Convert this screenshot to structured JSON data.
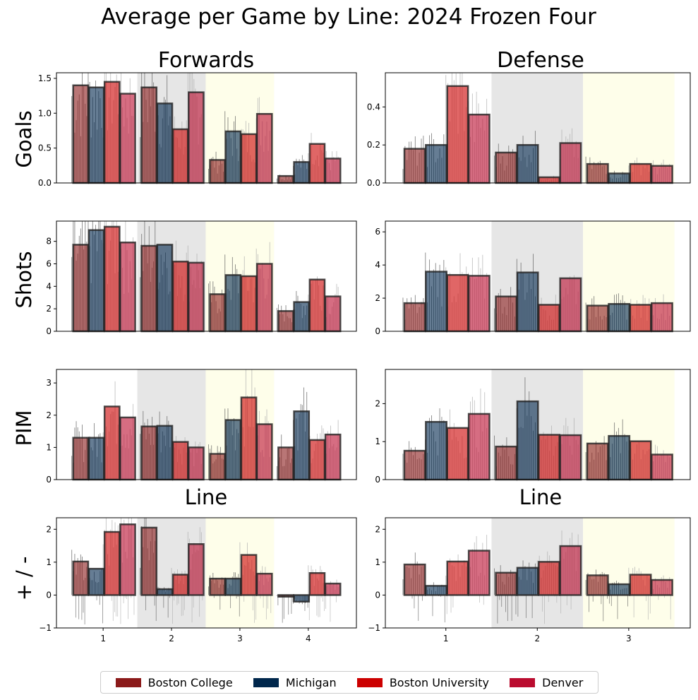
{
  "title": "Average per Game by Line: 2024 Frozen Four",
  "chart_data": {
    "type": "bar",
    "title": "Average per Game by Line: 2024 Frozen Four",
    "columns": [
      "Forwards",
      "Defense"
    ],
    "rows": [
      "Goals",
      "Shots",
      "PIM",
      "+ / -"
    ],
    "x_label_row3": "Line",
    "teams": [
      {
        "name": "Boston College",
        "color": "#8B1A1A"
      },
      {
        "name": "Michigan",
        "color": "#00274C"
      },
      {
        "name": "Boston University",
        "color": "#CC0000"
      },
      {
        "name": "Denver",
        "color": "#BA0C2F"
      }
    ],
    "forwards": {
      "lines": [
        "1",
        "2",
        "3",
        "4"
      ],
      "Goals": {
        "ylim": [
          0,
          1.58
        ],
        "ticks": [
          "0.0",
          "0.5",
          "1.0",
          "1.5"
        ],
        "values": [
          [
            1.4,
            1.37,
            1.45,
            1.28
          ],
          [
            1.37,
            1.14,
            0.77,
            1.3
          ],
          [
            0.33,
            0.74,
            0.7,
            0.99
          ],
          [
            0.1,
            0.3,
            0.56,
            0.35
          ]
        ]
      },
      "Shots": {
        "ylim": [
          0,
          9.8
        ],
        "ticks": [
          "0",
          "2",
          "4",
          "6",
          "8"
        ],
        "values": [
          [
            7.7,
            9.0,
            9.3,
            7.9
          ],
          [
            7.6,
            7.7,
            6.2,
            6.1
          ],
          [
            3.3,
            5.0,
            4.9,
            6.0
          ],
          [
            1.8,
            2.6,
            4.6,
            3.1
          ]
        ]
      },
      "PIM": {
        "ylim": [
          0,
          3.42
        ],
        "ticks": [
          "0",
          "1",
          "2",
          "3"
        ],
        "values": [
          [
            1.3,
            1.3,
            2.27,
            1.93
          ],
          [
            1.65,
            1.67,
            1.17,
            1.0
          ],
          [
            0.8,
            1.85,
            2.55,
            1.72
          ],
          [
            1.0,
            2.12,
            1.23,
            1.4
          ]
        ]
      },
      "PlusMinus": {
        "ylim": [
          -1,
          2.35
        ],
        "ticks": [
          "−1",
          "0",
          "1",
          "2"
        ],
        "values": [
          [
            1.02,
            0.8,
            1.92,
            2.15
          ],
          [
            2.05,
            0.18,
            0.62,
            1.55
          ],
          [
            0.5,
            0.5,
            1.22,
            0.65
          ],
          [
            -0.05,
            -0.2,
            0.67,
            0.35
          ]
        ]
      }
    },
    "defense": {
      "lines": [
        "1",
        "2",
        "3"
      ],
      "Goals": {
        "ylim": [
          0,
          0.58
        ],
        "ticks": [
          "0.0",
          "0.2",
          "0.4"
        ],
        "values": [
          [
            0.18,
            0.2,
            0.51,
            0.36
          ],
          [
            0.16,
            0.2,
            0.03,
            0.21
          ],
          [
            0.1,
            0.05,
            0.1,
            0.09
          ]
        ]
      },
      "Shots": {
        "ylim": [
          0,
          6.65
        ],
        "ticks": [
          "0",
          "2",
          "4",
          "6"
        ],
        "values": [
          [
            1.7,
            3.6,
            3.4,
            3.35
          ],
          [
            2.1,
            3.55,
            1.6,
            3.2
          ],
          [
            1.55,
            1.65,
            1.6,
            1.7
          ]
        ]
      },
      "PIM": {
        "ylim": [
          0,
          2.9
        ],
        "ticks": [
          "0",
          "1",
          "2"
        ],
        "values": [
          [
            0.76,
            1.52,
            1.36,
            1.73
          ],
          [
            0.87,
            2.06,
            1.18,
            1.17
          ],
          [
            0.95,
            1.15,
            1.01,
            0.66
          ]
        ]
      },
      "PlusMinus": {
        "ylim": [
          -1,
          2.35
        ],
        "ticks": [
          "−1",
          "0",
          "1",
          "2"
        ],
        "values": [
          [
            0.93,
            0.28,
            1.02,
            1.35
          ],
          [
            0.68,
            0.83,
            1.01,
            1.49
          ],
          [
            0.6,
            0.33,
            0.62,
            0.46
          ]
        ]
      }
    },
    "line_shading": [
      "#ffffff",
      "#e6e6e6",
      "#fefeea",
      "#ffffff"
    ],
    "legend": {
      "placement": "bottom-center"
    }
  }
}
